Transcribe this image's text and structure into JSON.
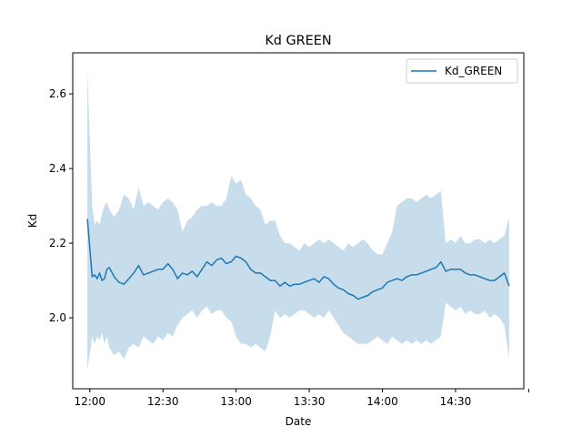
{
  "chart_data": {
    "type": "line",
    "title": "Kd GREEN",
    "xlabel": "Date",
    "ylabel": "Kd",
    "x_unit": "time_of_day",
    "xlim": [
      "11:53",
      "14:58"
    ],
    "ylim": [
      1.81,
      2.71
    ],
    "x_ticks": [
      "12:00",
      "12:30",
      "13:00",
      "13:30",
      "14:00",
      "14:30",
      ""
    ],
    "y_ticks": [
      "2.0",
      "2.2",
      "2.4",
      "2.6"
    ],
    "legend": {
      "position": "top-right",
      "entries": [
        "Kd_GREEN"
      ]
    },
    "grid": false,
    "colors": {
      "line": "#1f77b4",
      "band": "#1f77b4"
    },
    "series": [
      {
        "name": "Kd_GREEN",
        "x": [
          "11:59",
          "12:01",
          "12:02",
          "12:03",
          "12:04",
          "12:05",
          "12:06",
          "12:07",
          "12:08",
          "12:10",
          "12:12",
          "12:14",
          "12:16",
          "12:18",
          "12:20",
          "12:22",
          "12:24",
          "12:26",
          "12:28",
          "12:30",
          "12:32",
          "12:34",
          "12:36",
          "12:38",
          "12:40",
          "12:42",
          "12:44",
          "12:46",
          "12:48",
          "12:50",
          "12:52",
          "12:54",
          "12:56",
          "12:58",
          "13:00",
          "13:02",
          "13:04",
          "13:06",
          "13:08",
          "13:10",
          "13:12",
          "13:14",
          "13:16",
          "13:18",
          "13:20",
          "13:22",
          "13:24",
          "13:26",
          "13:28",
          "13:30",
          "13:32",
          "13:34",
          "13:36",
          "13:38",
          "13:40",
          "13:42",
          "13:44",
          "13:46",
          "13:48",
          "13:50",
          "13:52",
          "13:54",
          "13:56",
          "13:58",
          "14:00",
          "14:02",
          "14:04",
          "14:06",
          "14:08",
          "14:10",
          "14:12",
          "14:14",
          "14:16",
          "14:18",
          "14:20",
          "14:22",
          "14:24",
          "14:26",
          "14:28",
          "14:30",
          "14:32",
          "14:34",
          "14:36",
          "14:38",
          "14:40",
          "14:42",
          "14:44",
          "14:46",
          "14:48",
          "14:50",
          "14:52"
        ],
        "y": [
          2.265,
          2.11,
          2.115,
          2.105,
          2.12,
          2.1,
          2.105,
          2.13,
          2.135,
          2.11,
          2.095,
          2.09,
          2.105,
          2.12,
          2.14,
          2.115,
          2.12,
          2.125,
          2.13,
          2.13,
          2.145,
          2.13,
          2.105,
          2.12,
          2.115,
          2.125,
          2.11,
          2.13,
          2.15,
          2.14,
          2.155,
          2.16,
          2.145,
          2.15,
          2.165,
          2.16,
          2.15,
          2.13,
          2.12,
          2.12,
          2.11,
          2.1,
          2.1,
          2.085,
          2.095,
          2.085,
          2.09,
          2.09,
          2.095,
          2.1,
          2.105,
          2.095,
          2.11,
          2.105,
          2.09,
          2.08,
          2.075,
          2.065,
          2.06,
          2.05,
          2.055,
          2.06,
          2.07,
          2.075,
          2.08,
          2.095,
          2.1,
          2.105,
          2.1,
          2.11,
          2.115,
          2.115,
          2.12,
          2.125,
          2.13,
          2.135,
          2.15,
          2.125,
          2.13,
          2.13,
          2.13,
          2.12,
          2.115,
          2.115,
          2.11,
          2.105,
          2.1,
          2.1,
          2.11,
          2.12,
          2.085
        ],
        "upper": [
          2.66,
          2.3,
          2.25,
          2.26,
          2.25,
          2.28,
          2.3,
          2.31,
          2.29,
          2.27,
          2.29,
          2.33,
          2.32,
          2.29,
          2.35,
          2.3,
          2.31,
          2.3,
          2.29,
          2.31,
          2.32,
          2.31,
          2.29,
          2.23,
          2.26,
          2.27,
          2.29,
          2.3,
          2.3,
          2.31,
          2.3,
          2.3,
          2.32,
          2.38,
          2.36,
          2.37,
          2.33,
          2.32,
          2.3,
          2.29,
          2.25,
          2.26,
          2.26,
          2.22,
          2.2,
          2.2,
          2.19,
          2.18,
          2.2,
          2.19,
          2.2,
          2.21,
          2.2,
          2.21,
          2.2,
          2.19,
          2.18,
          2.2,
          2.19,
          2.2,
          2.21,
          2.2,
          2.18,
          2.17,
          2.17,
          2.2,
          2.23,
          2.3,
          2.31,
          2.32,
          2.32,
          2.31,
          2.32,
          2.33,
          2.32,
          2.33,
          2.34,
          2.2,
          2.21,
          2.2,
          2.22,
          2.2,
          2.2,
          2.21,
          2.21,
          2.2,
          2.21,
          2.2,
          2.21,
          2.22,
          2.27
        ],
        "lower": [
          1.86,
          1.95,
          1.93,
          1.95,
          1.94,
          1.96,
          1.93,
          1.95,
          1.92,
          1.9,
          1.91,
          1.89,
          1.92,
          1.93,
          1.92,
          1.95,
          1.94,
          1.93,
          1.95,
          1.94,
          1.96,
          1.95,
          1.98,
          2.0,
          2.01,
          2.02,
          2.0,
          2.02,
          2.03,
          2.01,
          2.02,
          2.02,
          2.0,
          1.99,
          1.95,
          1.93,
          1.93,
          1.92,
          1.93,
          1.92,
          1.91,
          1.95,
          2.02,
          2.0,
          2.01,
          2.0,
          2.01,
          2.02,
          2.02,
          2.01,
          2.0,
          2.01,
          2.0,
          2.02,
          2.0,
          1.98,
          1.96,
          1.95,
          1.94,
          1.93,
          1.93,
          1.93,
          1.94,
          1.95,
          1.94,
          1.93,
          1.95,
          1.94,
          1.93,
          1.94,
          1.93,
          1.94,
          1.93,
          1.94,
          1.93,
          1.94,
          1.95,
          2.04,
          2.03,
          2.02,
          2.03,
          2.01,
          2.02,
          2.01,
          2.01,
          2.02,
          2.0,
          2.01,
          2.0,
          1.98,
          1.89
        ]
      }
    ]
  }
}
